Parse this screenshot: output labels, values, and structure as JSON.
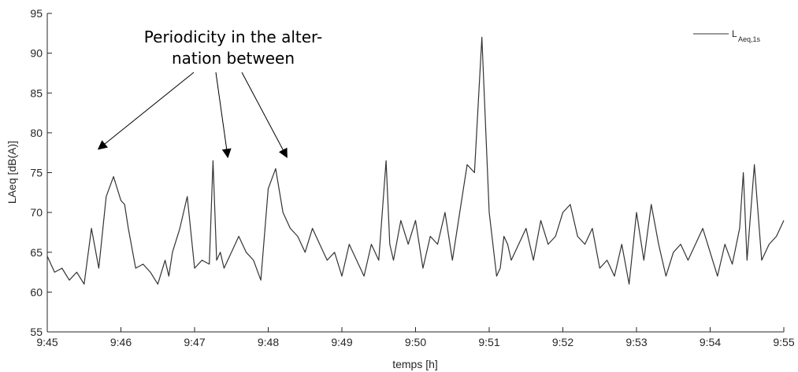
{
  "chart_data": {
    "type": "line",
    "xlabel": "temps [h]",
    "ylabel": "LAeq [dB(A)]",
    "ylim": [
      55,
      95
    ],
    "y_ticks": [
      55,
      60,
      65,
      70,
      75,
      80,
      85,
      90,
      95
    ],
    "xlim": [
      "9:45",
      "9:55"
    ],
    "x_ticks": [
      "9:45",
      "9:46",
      "9:47",
      "9:48",
      "9:49",
      "9:50",
      "9:51",
      "9:52",
      "9:53",
      "9:54",
      "9:55"
    ],
    "grid": false,
    "legend": {
      "position": "top-right",
      "main": "L",
      "subscript": "Aeq,1s"
    },
    "annotation": {
      "lines": [
        "Periodicity in the alter-",
        "nation between"
      ],
      "arrow_targets": [
        {
          "x_minutes": 0.7,
          "y": 78
        },
        {
          "x_minutes": 2.45,
          "y": 77
        },
        {
          "x_minutes": 3.25,
          "y": 77
        }
      ]
    },
    "series": [
      {
        "color": "#333333",
        "x_minutes": [
          0,
          0.1,
          0.2,
          0.3,
          0.4,
          0.5,
          0.6,
          0.7,
          0.8,
          0.9,
          1.0,
          1.05,
          1.1,
          1.2,
          1.3,
          1.4,
          1.5,
          1.6,
          1.65,
          1.7,
          1.8,
          1.9,
          2.0,
          2.1,
          2.2,
          2.25,
          2.3,
          2.35,
          2.4,
          2.5,
          2.6,
          2.7,
          2.8,
          2.9,
          3.0,
          3.1,
          3.2,
          3.3,
          3.4,
          3.5,
          3.6,
          3.7,
          3.8,
          3.9,
          4.0,
          4.1,
          4.2,
          4.3,
          4.4,
          4.5,
          4.6,
          4.65,
          4.7,
          4.8,
          4.9,
          5.0,
          5.1,
          5.2,
          5.3,
          5.4,
          5.5,
          5.6,
          5.7,
          5.8,
          5.9,
          6.0,
          6.1,
          6.15,
          6.2,
          6.25,
          6.3,
          6.4,
          6.5,
          6.6,
          6.7,
          6.8,
          6.9,
          7.0,
          7.1,
          7.2,
          7.3,
          7.4,
          7.5,
          7.6,
          7.7,
          7.8,
          7.9,
          8.0,
          8.1,
          8.2,
          8.3,
          8.4,
          8.5,
          8.6,
          8.7,
          8.8,
          8.9,
          9.0,
          9.1,
          9.2,
          9.3,
          9.4,
          9.45,
          9.5,
          9.6,
          9.7,
          9.8,
          9.9,
          10.0
        ],
        "values": [
          64.5,
          62.5,
          63,
          61.5,
          62.5,
          61,
          68,
          63,
          72,
          74.5,
          71.5,
          71,
          68,
          63,
          63.5,
          62.5,
          61,
          64,
          62,
          65,
          68,
          72,
          63,
          64,
          63.5,
          76.5,
          64,
          65,
          63,
          65,
          67,
          65,
          64,
          61.5,
          73,
          75.5,
          70,
          68,
          67,
          65,
          68,
          66,
          64,
          65,
          62,
          66,
          64,
          62,
          66,
          64,
          76.5,
          66,
          64,
          69,
          66,
          69,
          63,
          67,
          66,
          70,
          64,
          70,
          76,
          75,
          92,
          70,
          62,
          63,
          67,
          66,
          64,
          66,
          68,
          64,
          69,
          66,
          67,
          70,
          71,
          67,
          66,
          68,
          63,
          64,
          62,
          66,
          61,
          70,
          64,
          71,
          66,
          62,
          65,
          66,
          64,
          66,
          68,
          65,
          62,
          66,
          63.5,
          68,
          75,
          64,
          76,
          64,
          66,
          67,
          69
        ]
      }
    ]
  }
}
